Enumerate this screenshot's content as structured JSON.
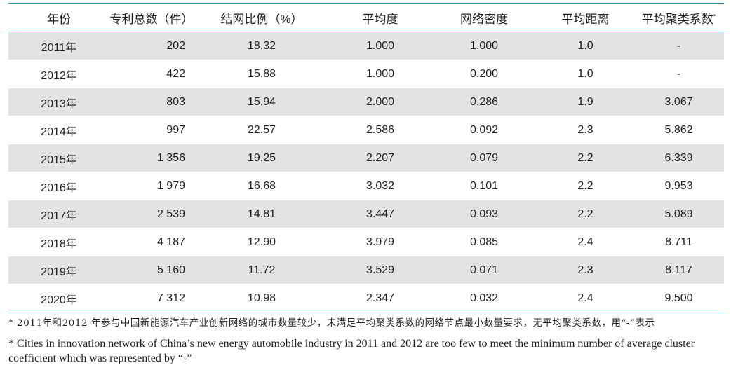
{
  "table": {
    "headers": [
      "年份",
      "专利总数（件）",
      "结网比例（%）",
      "平均度",
      "网络密度",
      "平均距离",
      "平均聚类系数"
    ],
    "header_mark": "*",
    "rows": [
      [
        "2011年",
        "202",
        "18.32",
        "1.000",
        "1.000",
        "1.0",
        "-"
      ],
      [
        "2012年",
        "422",
        "15.88",
        "1.000",
        "0.200",
        "1.0",
        "-"
      ],
      [
        "2013年",
        "803",
        "15.94",
        "2.000",
        "0.286",
        "1.9",
        "3.067"
      ],
      [
        "2014年",
        "997",
        "22.57",
        "2.586",
        "0.092",
        "2.3",
        "5.862"
      ],
      [
        "2015年",
        "1 356",
        "19.25",
        "2.207",
        "0.079",
        "2.2",
        "6.339"
      ],
      [
        "2016年",
        "1 979",
        "16.68",
        "3.032",
        "0.101",
        "2.2",
        "9.953"
      ],
      [
        "2017年",
        "2 539",
        "14.81",
        "3.447",
        "0.093",
        "2.2",
        "5.089"
      ],
      [
        "2018年",
        "4 187",
        "12.90",
        "3.979",
        "0.085",
        "2.4",
        "8.711"
      ],
      [
        "2019年",
        "5 160",
        "11.72",
        "3.529",
        "0.071",
        "2.3",
        "8.117"
      ],
      [
        "2020年",
        "7 312",
        "10.98",
        "2.347",
        "0.032",
        "2.4",
        "9.500"
      ]
    ]
  },
  "notes": {
    "cn": "* 2011年和2012 年参与中国新能源汽车产业创新网络的城市数量较少，未满足平均聚类系数的网络节点最小数量要求，无平均聚类系数，用“-”表示",
    "en": "* Cities in innovation network of China’s new energy automobile industry in 2011 and 2012 are too few to meet the minimum number of average cluster coefficient which was represented by “-”"
  },
  "colors": {
    "rule": "#1f8fa8",
    "shaded_row": "#e2e4e4"
  }
}
